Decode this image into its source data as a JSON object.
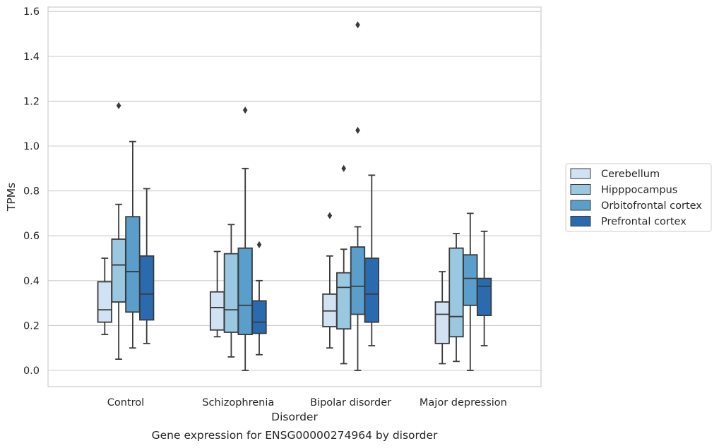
{
  "chart_data": {
    "type": "box",
    "title": "",
    "caption": "Gene expression for ENSG00000274964 by disorder",
    "xlabel": "Disorder",
    "ylabel": "TPMs",
    "ylim": [
      -0.075,
      1.62
    ],
    "yticks": [
      "0.0",
      "0.2",
      "0.4",
      "0.6",
      "0.8",
      "1.0",
      "1.2",
      "1.4",
      "1.6"
    ],
    "grid": "horizontal",
    "legend_position": "right",
    "categories": [
      "Control",
      "Schizophrenia",
      "Bipolar disorder",
      "Major depression"
    ],
    "series": [
      {
        "name": "Cerebellum",
        "color": "#d1e2f2",
        "boxes": [
          {
            "whislo": 0.16,
            "q1": 0.215,
            "med": 0.27,
            "q3": 0.395,
            "whishi": 0.5,
            "fliers": []
          },
          {
            "whislo": 0.15,
            "q1": 0.18,
            "med": 0.28,
            "q3": 0.35,
            "whishi": 0.53,
            "fliers": []
          },
          {
            "whislo": 0.1,
            "q1": 0.195,
            "med": 0.265,
            "q3": 0.34,
            "whishi": 0.51,
            "fliers": [
              0.69
            ]
          },
          {
            "whislo": 0.03,
            "q1": 0.12,
            "med": 0.25,
            "q3": 0.305,
            "whishi": 0.44,
            "fliers": []
          }
        ]
      },
      {
        "name": "Hipppocampus",
        "color": "#9ac8e0",
        "boxes": [
          {
            "whislo": 0.05,
            "q1": 0.305,
            "med": 0.47,
            "q3": 0.585,
            "whishi": 0.74,
            "fliers": [
              1.18
            ]
          },
          {
            "whislo": 0.06,
            "q1": 0.17,
            "med": 0.27,
            "q3": 0.52,
            "whishi": 0.65,
            "fliers": []
          },
          {
            "whislo": 0.03,
            "q1": 0.185,
            "med": 0.37,
            "q3": 0.435,
            "whishi": 0.54,
            "fliers": [
              0.9
            ]
          },
          {
            "whislo": 0.04,
            "q1": 0.15,
            "med": 0.24,
            "q3": 0.545,
            "whishi": 0.61,
            "fliers": []
          }
        ]
      },
      {
        "name": "Orbitofrontal cortex",
        "color": "#5a9fcc",
        "boxes": [
          {
            "whislo": 0.1,
            "q1": 0.26,
            "med": 0.44,
            "q3": 0.685,
            "whishi": 1.02,
            "fliers": []
          },
          {
            "whislo": 0.0,
            "q1": 0.16,
            "med": 0.29,
            "q3": 0.545,
            "whishi": 0.9,
            "fliers": [
              1.16
            ]
          },
          {
            "whislo": 0.0,
            "q1": 0.25,
            "med": 0.375,
            "q3": 0.55,
            "whishi": 0.64,
            "fliers": [
              1.07,
              1.54
            ]
          },
          {
            "whislo": 0.0,
            "q1": 0.29,
            "med": 0.41,
            "q3": 0.515,
            "whishi": 0.7,
            "fliers": []
          }
        ]
      },
      {
        "name": "Prefrontal cortex",
        "color": "#2a6aaf",
        "boxes": [
          {
            "whislo": 0.12,
            "q1": 0.225,
            "med": 0.34,
            "q3": 0.51,
            "whishi": 0.81,
            "fliers": []
          },
          {
            "whislo": 0.07,
            "q1": 0.165,
            "med": 0.215,
            "q3": 0.31,
            "whishi": 0.4,
            "fliers": [
              0.56
            ]
          },
          {
            "whislo": 0.11,
            "q1": 0.215,
            "med": 0.34,
            "q3": 0.5,
            "whishi": 0.87,
            "fliers": []
          },
          {
            "whislo": 0.11,
            "q1": 0.245,
            "med": 0.375,
            "q3": 0.41,
            "whishi": 0.62,
            "fliers": []
          }
        ]
      }
    ]
  },
  "colors": {
    "grid": "#cccccc",
    "spine": "#cccccc",
    "line": "#3a3a3a"
  }
}
